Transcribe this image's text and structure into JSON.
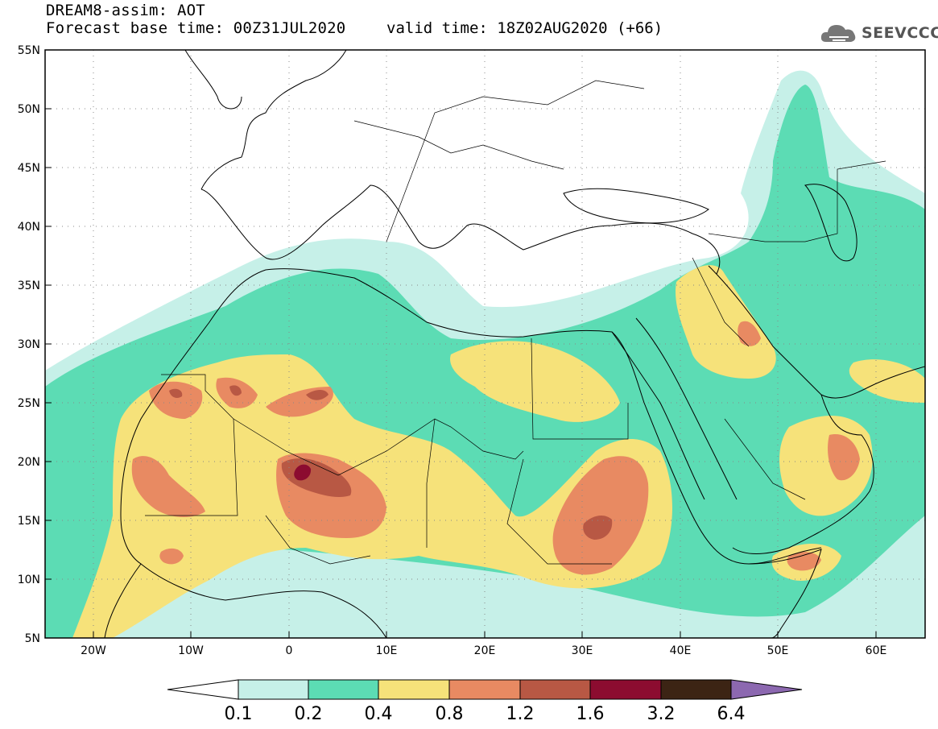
{
  "header": {
    "title": "DREAM8-assim: AOT",
    "base_time": "Forecast base time: 00Z31JUL2020",
    "valid_time": "valid time: 18Z02AUG2020 (+66)"
  },
  "logo": {
    "text": "SEEVCCC",
    "icon": "cloud-icon"
  },
  "map": {
    "lat_labels": [
      "55N",
      "50N",
      "45N",
      "40N",
      "35N",
      "30N",
      "25N",
      "20N",
      "15N",
      "10N",
      "5N"
    ],
    "lon_labels": [
      "20W",
      "10W",
      "0",
      "10E",
      "20E",
      "30E",
      "40E",
      "50E",
      "60E"
    ],
    "lat_range": [
      5,
      55
    ],
    "lon_range": [
      -25,
      65
    ]
  },
  "colorbar": {
    "labels": [
      "0.1",
      "0.2",
      "0.4",
      "0.8",
      "1.2",
      "1.6",
      "3.2",
      "6.4"
    ],
    "colors": [
      "#c6f0e8",
      "#5cdcb4",
      "#f6e27a",
      "#e88a62",
      "#b85844",
      "#8c0c30",
      "#3c2414",
      "#8c68b0"
    ],
    "under_color": "#ffffff"
  },
  "palette": {
    "very_light": "#c6f0e8",
    "light": "#5cdcb4",
    "yellow": "#f6e27a",
    "orange": "#e88a62",
    "brown": "#b85844",
    "dark_red": "#8c0c30"
  }
}
